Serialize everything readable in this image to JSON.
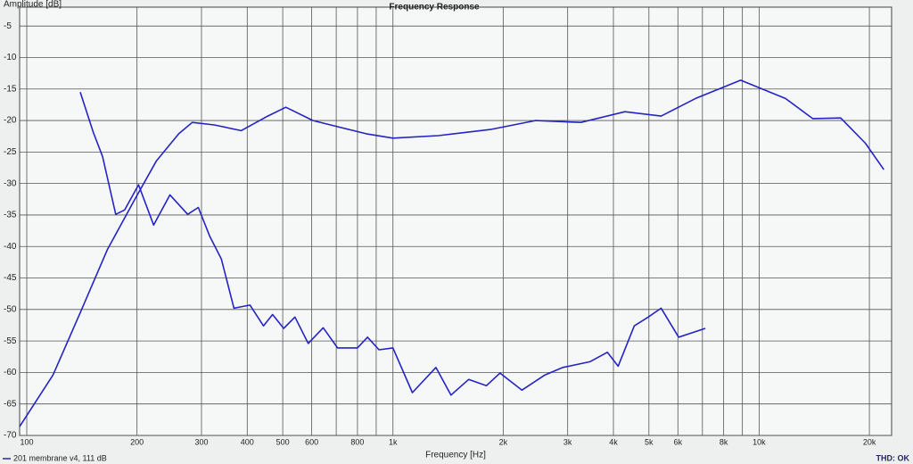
{
  "chart_data": {
    "type": "line",
    "title": "Frequency Response",
    "y_label": "Amplitude [dB]",
    "x_label": "Frequency [Hz]",
    "log_x": true,
    "grid": true,
    "xlim": [
      95.6,
      23000
    ],
    "ylim": [
      -70,
      -2
    ],
    "xticks": [
      100,
      200,
      300,
      400,
      500,
      600,
      800,
      {
        "value": 1000,
        "label": "1k"
      },
      {
        "value": 2000,
        "label": "2k"
      },
      {
        "value": 3000,
        "label": "3k"
      },
      {
        "value": 4000,
        "label": "4k"
      },
      {
        "value": 5000,
        "label": "5k"
      },
      {
        "value": 6000,
        "label": "6k"
      },
      {
        "value": 8000,
        "label": "8k"
      },
      {
        "value": 10000,
        "label": "10k"
      },
      {
        "value": 20000,
        "label": "20k"
      }
    ],
    "minor_xticks": [
      700,
      900,
      7000,
      9000
    ],
    "yticks": [
      -70,
      -65,
      -60,
      -55,
      -50,
      -45,
      -40,
      -35,
      -30,
      -25,
      -20,
      -15,
      -10,
      -5
    ],
    "status": "THD: OK",
    "series": [
      {
        "name": "201 membrane v4, 111 dB",
        "color": "#2424c4",
        "x": [
          95.6,
          118,
          140,
          166,
          196,
          226,
          260,
          283,
          325,
          385,
          455,
          510,
          605,
          845,
          1000,
          1330,
          1860,
          2450,
          3260,
          4300,
          5400,
          6700,
          8900,
          11800,
          14000,
          16700,
          19500,
          21900
        ],
        "values": [
          -68.6,
          -60.4,
          -50.5,
          -40.5,
          -32.8,
          -26.4,
          -22.1,
          -20.3,
          -20.7,
          -21.6,
          -19.3,
          -17.9,
          -20,
          -22.1,
          -22.8,
          -22.4,
          -21.4,
          -20,
          -20.3,
          -18.6,
          -19.3,
          -16.5,
          -13.6,
          -16.5,
          -19.7,
          -19.6,
          -23.6,
          -27.8
        ]
      },
      {
        "color": "#2424c4",
        "x": [
          140,
          152,
          161,
          175,
          185,
          202,
          222,
          246,
          275,
          294,
          316,
          340,
          368,
          407,
          443,
          469,
          503,
          540,
          587,
          645,
          706,
          800,
          852,
          916,
          1000,
          1130,
          1310,
          1440,
          1610,
          1800,
          1960,
          2250,
          2600,
          2910,
          3450,
          3850,
          4120,
          4560,
          4980,
          5400,
          6030,
          7130
        ],
        "values": [
          -15.5,
          -21.9,
          -25.7,
          -34.9,
          -34.2,
          -30.2,
          -36.6,
          -31.8,
          -34.9,
          -33.8,
          -38.4,
          -42,
          -49.8,
          -49.3,
          -52.6,
          -50.8,
          -53,
          -51.2,
          -55.4,
          -52.9,
          -56.1,
          -56.1,
          -54.4,
          -56.4,
          -56.1,
          -63.2,
          -59.2,
          -63.6,
          -61.1,
          -62.1,
          -60.1,
          -62.8,
          -60.4,
          -59.2,
          -58.3,
          -56.8,
          -59,
          -52.6,
          -51.2,
          -49.8,
          -54.4,
          -53
        ]
      }
    ]
  }
}
